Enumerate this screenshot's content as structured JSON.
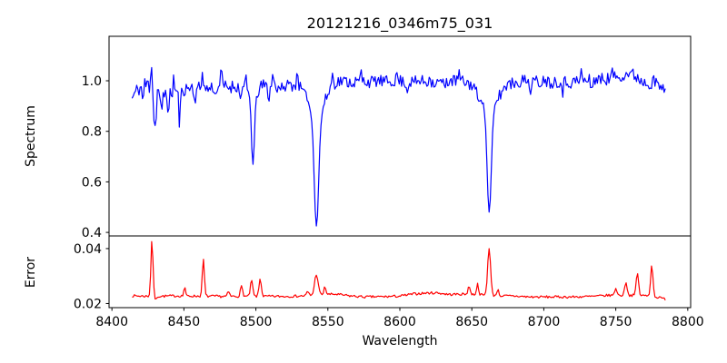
{
  "figure": {
    "title": "20121216_0346m75_031",
    "xlabel": "Wavelength",
    "background_color": "#ffffff",
    "frame_color": "#000000",
    "text_color": "#000000",
    "xticks": [
      8400,
      8450,
      8500,
      8550,
      8600,
      8650,
      8700,
      8750,
      8800
    ],
    "xtick_labels": [
      "8400",
      "8450",
      "8500",
      "8550",
      "8600",
      "8650",
      "8700",
      "8750",
      "8800"
    ]
  },
  "chart_data": [
    {
      "type": "line",
      "name": "spectrum",
      "ylabel": "Spectrum",
      "color": "#0000ff",
      "legend": "none",
      "grid": false,
      "xlim": [
        8398,
        8802
      ],
      "ylim": [
        0.386,
        1.176
      ],
      "yticks": [
        0.4,
        0.6,
        0.8,
        1.0
      ],
      "ytick_labels": [
        "0.4",
        "0.6",
        "0.8",
        "1.0"
      ],
      "x_data_range": [
        8414,
        8784.5
      ],
      "step": 0.8,
      "noise_seed": 11,
      "keypoints": [
        [
          8414,
          0.93
        ],
        [
          8417,
          0.96
        ],
        [
          8420,
          0.975
        ],
        [
          8424,
          0.985
        ],
        [
          8428,
          0.975
        ],
        [
          8432,
          0.955
        ],
        [
          8436,
          0.95
        ],
        [
          8440,
          0.96
        ],
        [
          8445,
          0.955
        ],
        [
          8450,
          0.965
        ],
        [
          8455,
          0.975
        ],
        [
          8460,
          0.97
        ],
        [
          8465,
          0.965
        ],
        [
          8470,
          0.975
        ],
        [
          8475,
          0.985
        ],
        [
          8480,
          0.975
        ],
        [
          8485,
          0.98
        ],
        [
          8490,
          0.975
        ],
        [
          8495,
          0.975
        ],
        [
          8500,
          0.975
        ],
        [
          8505,
          0.985
        ],
        [
          8510,
          0.975
        ],
        [
          8515,
          0.975
        ],
        [
          8520,
          0.985
        ],
        [
          8525,
          0.985
        ],
        [
          8530,
          0.985
        ],
        [
          8535,
          0.985
        ],
        [
          8540,
          0.985
        ],
        [
          8545,
          0.985
        ],
        [
          8550,
          0.995
        ],
        [
          8555,
          1.0
        ],
        [
          8560,
          1.0
        ],
        [
          8565,
          0.995
        ],
        [
          8570,
          0.995
        ],
        [
          8575,
          1.0
        ],
        [
          8580,
          0.995
        ],
        [
          8585,
          1.0
        ],
        [
          8590,
          0.995
        ],
        [
          8595,
          1.0
        ],
        [
          8600,
          1.0
        ],
        [
          8605,
          0.995
        ],
        [
          8610,
          0.995
        ],
        [
          8615,
          1.0
        ],
        [
          8620,
          0.995
        ],
        [
          8625,
          0.99
        ],
        [
          8630,
          1.0
        ],
        [
          8635,
          1.0
        ],
        [
          8640,
          1.0
        ],
        [
          8645,
          0.995
        ],
        [
          8650,
          0.985
        ],
        [
          8655,
          0.975
        ],
        [
          8660,
          0.975
        ],
        [
          8665,
          0.975
        ],
        [
          8670,
          0.97
        ],
        [
          8675,
          0.985
        ],
        [
          8680,
          0.995
        ],
        [
          8685,
          1.0
        ],
        [
          8690,
          1.0
        ],
        [
          8695,
          0.995
        ],
        [
          8700,
          1.0
        ],
        [
          8705,
          0.995
        ],
        [
          8710,
          1.0
        ],
        [
          8715,
          0.995
        ],
        [
          8720,
          0.995
        ],
        [
          8725,
          1.0
        ],
        [
          8730,
          1.0
        ],
        [
          8735,
          1.005
        ],
        [
          8740,
          1.005
        ],
        [
          8745,
          1.01
        ],
        [
          8750,
          1.015
        ],
        [
          8755,
          1.025
        ],
        [
          8760,
          1.03
        ],
        [
          8765,
          1.015
        ],
        [
          8768,
          1.0
        ],
        [
          8772,
          0.995
        ],
        [
          8776,
          0.99
        ],
        [
          8780,
          0.98
        ],
        [
          8784.5,
          0.955
        ]
      ],
      "absorption_lines": [
        {
          "center": 8498.0,
          "depth": 0.27,
          "sigma": 1.0,
          "wing_depth": 0.04,
          "wing_sigma": 3.0
        },
        {
          "center": 8542.1,
          "depth": 0.43,
          "sigma": 1.5,
          "wing_depth": 0.13,
          "wing_sigma": 5.5
        },
        {
          "center": 8662.1,
          "depth": 0.4,
          "sigma": 1.4,
          "wing_depth": 0.1,
          "wing_sigma": 4.5
        }
      ],
      "dips": [
        [
          8421.5,
          0.05,
          0.6
        ],
        [
          8429.8,
          0.16,
          0.7
        ],
        [
          8434.5,
          0.1,
          0.6
        ],
        [
          8439.5,
          0.09,
          0.6
        ],
        [
          8447.0,
          0.12,
          0.6
        ],
        [
          8457.5,
          0.06,
          0.5
        ],
        [
          8472,
          0.05,
          0.5
        ],
        [
          8489,
          0.05,
          0.5
        ],
        [
          8509,
          0.05,
          0.5
        ],
        [
          8519,
          0.04,
          0.5
        ],
        [
          8605,
          0.04,
          0.5
        ],
        [
          8631,
          0.04,
          0.5
        ],
        [
          8654,
          0.04,
          0.5
        ],
        [
          8691,
          0.05,
          0.5
        ],
        [
          8713,
          0.04,
          0.5
        ],
        [
          8733,
          0.04,
          0.5
        ]
      ],
      "peaks": [
        [
          8427.3,
          0.13,
          0.5
        ],
        [
          8443,
          0.05,
          0.5
        ],
        [
          8463,
          0.08,
          0.5
        ],
        [
          8476,
          0.05,
          0.5
        ],
        [
          8493,
          0.04,
          0.4
        ],
        [
          8512,
          0.06,
          0.5
        ],
        [
          8529,
          0.07,
          0.5
        ],
        [
          8536,
          0.04,
          0.4
        ],
        [
          8553,
          0.05,
          0.5
        ],
        [
          8573,
          0.04,
          0.4
        ],
        [
          8598,
          0.03,
          0.4
        ],
        [
          8621,
          0.04,
          0.4
        ],
        [
          8641,
          0.04,
          0.4
        ],
        [
          8676,
          0.04,
          0.4
        ],
        [
          8701,
          0.03,
          0.4
        ],
        [
          8726,
          0.04,
          0.4
        ],
        [
          8748,
          0.03,
          0.4
        ],
        [
          8776,
          0.05,
          0.4
        ]
      ],
      "noise_regions": [
        [
          8414,
          8420,
          0.03
        ],
        [
          8420,
          8426,
          0.045
        ],
        [
          8426,
          8433,
          0.07
        ],
        [
          8433,
          8448,
          0.04
        ],
        [
          8448,
          8495,
          0.026
        ],
        [
          8495,
          8501,
          0.014
        ],
        [
          8501,
          8537,
          0.025
        ],
        [
          8537,
          8548,
          0.01
        ],
        [
          8548,
          8656,
          0.024
        ],
        [
          8656,
          8668,
          0.01
        ],
        [
          8668,
          8784.5,
          0.026
        ]
      ]
    },
    {
      "type": "line",
      "name": "error",
      "ylabel": "Error",
      "color": "#ff0000",
      "legend": "none",
      "grid": false,
      "xlim": [
        8398,
        8802
      ],
      "ylim": [
        0.0185,
        0.0446
      ],
      "yticks": [
        0.02,
        0.04
      ],
      "ytick_labels": [
        "0.02",
        "0.04"
      ],
      "x_data_range": [
        8414,
        8784.5
      ],
      "step": 0.8,
      "noise_seed": 7,
      "keypoints": [
        [
          8414,
          0.0228
        ],
        [
          8430,
          0.0226
        ],
        [
          8445,
          0.0228
        ],
        [
          8460,
          0.0227
        ],
        [
          8475,
          0.0226
        ],
        [
          8490,
          0.0226
        ],
        [
          8505,
          0.0226
        ],
        [
          8520,
          0.0226
        ],
        [
          8535,
          0.0228
        ],
        [
          8545,
          0.0232
        ],
        [
          8555,
          0.0234
        ],
        [
          8565,
          0.0228
        ],
        [
          8575,
          0.0224
        ],
        [
          8590,
          0.0225
        ],
        [
          8600,
          0.0227
        ],
        [
          8610,
          0.0235
        ],
        [
          8618,
          0.0238
        ],
        [
          8626,
          0.0239
        ],
        [
          8634,
          0.0233
        ],
        [
          8642,
          0.0234
        ],
        [
          8650,
          0.0234
        ],
        [
          8660,
          0.023
        ],
        [
          8670,
          0.0228
        ],
        [
          8680,
          0.0227
        ],
        [
          8690,
          0.0224
        ],
        [
          8705,
          0.0224
        ],
        [
          8720,
          0.0224
        ],
        [
          8735,
          0.0226
        ],
        [
          8745,
          0.023
        ],
        [
          8755,
          0.023
        ],
        [
          8765,
          0.023
        ],
        [
          8772,
          0.0228
        ],
        [
          8778,
          0.0224
        ],
        [
          8784.5,
          0.0216
        ]
      ],
      "absorption_lines": [],
      "dips": [
        [
          8430.5,
          0.0014,
          0.5
        ]
      ],
      "peaks": [
        [
          8427.8,
          0.0207,
          0.7
        ],
        [
          8450.5,
          0.0036,
          0.5
        ],
        [
          8463.5,
          0.0135,
          0.7
        ],
        [
          8481,
          0.0016,
          0.7
        ],
        [
          8490,
          0.0036,
          0.8
        ],
        [
          8497,
          0.0058,
          0.8
        ],
        [
          8503,
          0.0064,
          0.8
        ],
        [
          8536,
          0.0014,
          0.8
        ],
        [
          8542,
          0.0076,
          1.2
        ],
        [
          8548,
          0.0028,
          0.7
        ],
        [
          8648,
          0.003,
          0.7
        ],
        [
          8654,
          0.0038,
          0.7
        ],
        [
          8662,
          0.0174,
          1.0
        ],
        [
          8668,
          0.0022,
          0.7
        ],
        [
          8750,
          0.0028,
          0.7
        ],
        [
          8757,
          0.005,
          0.8
        ],
        [
          8765,
          0.0082,
          0.8
        ],
        [
          8775,
          0.0115,
          0.8
        ]
      ],
      "noise_regions": [
        [
          8414,
          8784.5,
          0.00045
        ]
      ]
    }
  ]
}
